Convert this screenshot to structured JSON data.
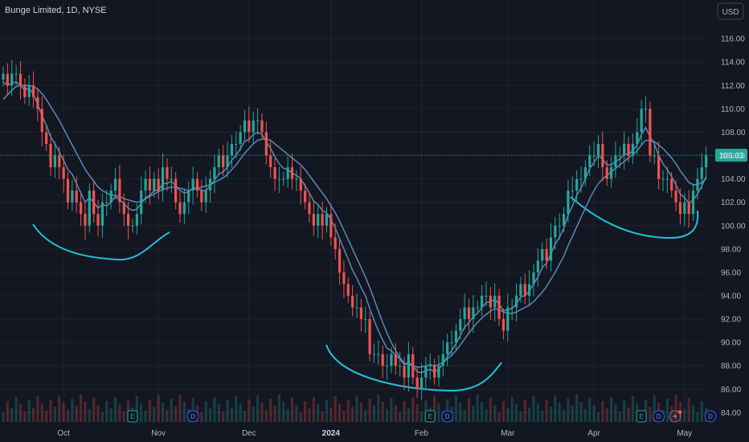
{
  "header": {
    "title": "Bunge Limited, 1D, NYSE",
    "currency_button": "USD"
  },
  "chart_data": {
    "type": "candlestick",
    "title": "Bunge Limited, 1D, NYSE",
    "y_ticks": [
      "116.00",
      "114.00",
      "112.00",
      "110.00",
      "108.00",
      "106.00",
      "104.00",
      "102.00",
      "100.00",
      "98.00",
      "96.00",
      "94.00",
      "92.00",
      "90.00",
      "88.00",
      "86.00",
      "84.00"
    ],
    "ylim": [
      83.2,
      117.8
    ],
    "x_tick_labels": [
      {
        "label": "Oct",
        "index": 14,
        "bold": false
      },
      {
        "label": "Nov",
        "index": 36,
        "bold": false
      },
      {
        "label": "Dec",
        "index": 57,
        "bold": false
      },
      {
        "label": "2024",
        "index": 76,
        "bold": true
      },
      {
        "label": "Feb",
        "index": 97,
        "bold": false
      },
      {
        "label": "Mar",
        "index": 117,
        "bold": false
      },
      {
        "label": "Apr",
        "index": 137,
        "bold": false
      },
      {
        "label": "May",
        "index": 158,
        "bold": false
      }
    ],
    "last_price": {
      "label": "106.03",
      "value": 106.03
    },
    "closes": [
      113,
      112,
      113,
      113,
      112,
      111,
      112,
      111,
      110,
      108,
      107,
      105,
      106,
      105,
      104,
      102,
      103,
      102,
      101,
      100,
      103,
      101,
      100,
      102,
      102,
      103,
      104,
      102,
      101,
      100,
      100,
      101,
      103,
      104,
      103,
      104,
      103,
      105,
      104,
      104,
      102,
      101,
      102,
      103,
      104,
      103,
      102,
      103,
      104,
      105,
      106,
      105,
      106,
      107,
      107,
      108,
      109,
      108,
      109,
      109,
      108,
      106,
      105,
      104,
      104,
      104,
      105,
      104,
      104,
      103,
      102,
      101,
      100,
      101,
      100,
      101,
      99,
      98,
      96,
      95,
      94,
      93,
      93,
      92,
      92,
      89,
      89,
      89,
      88,
      88,
      89,
      88,
      88,
      87,
      89,
      87,
      86,
      87,
      88,
      88,
      87,
      88,
      89,
      90,
      90,
      91,
      92,
      93,
      92,
      93,
      93,
      94,
      94,
      93,
      94,
      92,
      91,
      93,
      93,
      94,
      95,
      94,
      95,
      96,
      97,
      98,
      97,
      99,
      100,
      100,
      101,
      103,
      103,
      104,
      104,
      105,
      106,
      106,
      107,
      105,
      104,
      105,
      106,
      106,
      107,
      106,
      107,
      108,
      110,
      110,
      106,
      106,
      104,
      104,
      104,
      103,
      102,
      101,
      102,
      101,
      103,
      104,
      105,
      106
    ],
    "ma_fast": [
      112.3,
      112.0,
      112.2,
      112.3,
      112.0,
      111.6,
      111.8,
      111.2,
      110.4,
      109.4,
      108.6,
      107.6,
      107.0,
      106.3,
      105.6,
      104.8,
      104.4,
      103.6,
      102.8,
      102.0,
      102.4,
      102.0,
      101.5,
      101.8,
      101.7,
      102.0,
      102.5,
      102.2,
      101.9,
      101.5,
      101.3,
      101.4,
      101.9,
      102.4,
      102.6,
      103.0,
      103.0,
      103.6,
      103.6,
      103.8,
      103.4,
      103.0,
      102.8,
      102.9,
      103.2,
      103.2,
      103.0,
      103.0,
      103.4,
      103.9,
      104.4,
      104.6,
      105.0,
      105.6,
      106.0,
      106.6,
      107.2,
      107.4,
      107.8,
      108.0,
      107.8,
      107.2,
      106.6,
      105.9,
      105.3,
      104.9,
      104.8,
      104.5,
      104.3,
      104.0,
      103.4,
      102.8,
      102.1,
      101.8,
      101.3,
      101.1,
      100.5,
      99.8,
      98.9,
      98.0,
      97.1,
      96.2,
      95.5,
      94.7,
      94.0,
      92.9,
      91.9,
      91.0,
      90.2,
      89.5,
      89.3,
      88.9,
      88.6,
      88.1,
      88.3,
      88.0,
      87.5,
      87.4,
      87.6,
      87.7,
      87.5,
      87.7,
      88.2,
      88.8,
      89.3,
      89.9,
      90.6,
      91.3,
      91.7,
      92.2,
      92.5,
      93.0,
      93.4,
      93.5,
      93.7,
      93.3,
      92.7,
      92.8,
      92.9,
      93.3,
      93.9,
      94.0,
      94.4,
      95.0,
      95.6,
      96.4,
      96.8,
      97.6,
      98.4,
      99.0,
      99.8,
      100.9,
      101.7,
      102.6,
      103.2,
      104.0,
      104.9,
      105.4,
      106.0,
      105.7,
      105.2,
      105.2,
      105.5,
      105.7,
      106.1,
      106.1,
      106.4,
      106.9,
      107.8,
      108.4,
      107.6,
      107.0,
      106.0,
      105.3,
      104.8,
      104.2,
      103.5,
      102.7,
      102.4,
      101.9,
      102.2,
      102.7,
      103.4,
      104.2
    ],
    "ma_slow": [
      110.8,
      111.2,
      111.6,
      111.9,
      112.0,
      112.0,
      112.0,
      111.9,
      111.7,
      111.3,
      110.8,
      110.2,
      109.6,
      109.0,
      108.3,
      107.6,
      106.9,
      106.2,
      105.5,
      104.8,
      104.3,
      103.8,
      103.3,
      103.0,
      102.8,
      102.6,
      102.6,
      102.5,
      102.3,
      102.2,
      102.1,
      102.0,
      102.1,
      102.3,
      102.5,
      102.7,
      102.9,
      103.1,
      103.2,
      103.3,
      103.3,
      103.2,
      103.1,
      103.0,
      103.1,
      103.2,
      103.3,
      103.4,
      103.5,
      103.7,
      103.9,
      104.1,
      104.4,
      104.8,
      105.2,
      105.7,
      106.2,
      106.6,
      107.0,
      107.3,
      107.4,
      107.4,
      107.3,
      107.0,
      106.7,
      106.4,
      106.1,
      105.8,
      105.5,
      105.2,
      104.8,
      104.3,
      103.8,
      103.3,
      102.8,
      102.3,
      101.7,
      101.1,
      100.4,
      99.6,
      98.8,
      98.0,
      97.2,
      96.4,
      95.6,
      94.7,
      93.7,
      92.7,
      91.7,
      90.8,
      90.0,
      89.3,
      88.7,
      88.2,
      88.1,
      88.0,
      87.9,
      87.9,
      88.0,
      88.1,
      88.0,
      88.1,
      88.3,
      88.6,
      88.9,
      89.3,
      89.8,
      90.3,
      90.8,
      91.3,
      91.7,
      92.1,
      92.4,
      92.7,
      92.9,
      92.8,
      92.6,
      92.5,
      92.5,
      92.6,
      92.8,
      93.0,
      93.2,
      93.5,
      93.9,
      94.3,
      94.8,
      95.4,
      96.0,
      96.7,
      97.4,
      98.3,
      99.1,
      99.9,
      100.7,
      101.5,
      102.3,
      103.0,
      103.6,
      104.0,
      104.3,
      104.6,
      104.9,
      105.2,
      105.5,
      105.8,
      106.1,
      106.4,
      106.9,
      107.3,
      107.3,
      107.2,
      106.9,
      106.6,
      106.2,
      105.8,
      105.3,
      104.7,
      104.2,
      103.7,
      103.5,
      103.5,
      103.7,
      104.0
    ]
  },
  "event_badges": [
    {
      "label": "E",
      "index": 30
    },
    {
      "label": "D",
      "index": 44
    },
    {
      "label": "E",
      "index": 99
    },
    {
      "label": "D",
      "index": 103
    },
    {
      "label": "E",
      "index": 148
    },
    {
      "label": "D",
      "index": 152
    },
    {
      "label": "D",
      "index": 164
    }
  ],
  "colors": {
    "background": "#131722",
    "grid": "#1f2330",
    "up": "#26a69a",
    "down": "#ef5350",
    "ma": "#5b8ab8",
    "drawing": "#22c3d3",
    "price_line": "#26a69a"
  }
}
